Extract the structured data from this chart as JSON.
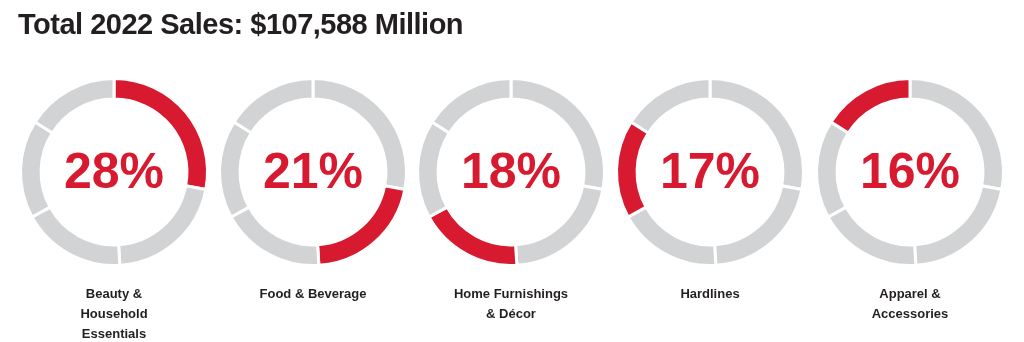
{
  "chart_data": [
    {
      "type": "other",
      "title": "Total 2022 Sales: $107,588 Million"
    },
    {
      "type": "donut",
      "title": "Beauty & Household Essentials",
      "categories": [
        null,
        null,
        null,
        null,
        null
      ],
      "values": [
        28,
        21,
        18,
        17,
        16
      ],
      "colors": [
        "#d71a30",
        "#d1d3d4",
        "#d1d3d4",
        "#d1d3d4",
        "#d1d3d4"
      ],
      "annotations": [
        "28%"
      ]
    },
    {
      "type": "donut",
      "title": "Food & Beverage",
      "categories": [
        null,
        null,
        null,
        null,
        null
      ],
      "values": [
        28,
        21,
        18,
        17,
        16
      ],
      "colors": [
        "#d1d3d4",
        "#d71a30",
        "#d1d3d4",
        "#d1d3d4",
        "#d1d3d4"
      ],
      "annotations": [
        "21%"
      ]
    },
    {
      "type": "donut",
      "title": "Home Furnishings & Décor",
      "categories": [
        null,
        null,
        null,
        null,
        null
      ],
      "values": [
        28,
        21,
        18,
        17,
        16
      ],
      "colors": [
        "#d1d3d4",
        "#d1d3d4",
        "#d71a30",
        "#d1d3d4",
        "#d1d3d4"
      ],
      "annotations": [
        "18%"
      ]
    },
    {
      "type": "donut",
      "title": "Hardlines",
      "categories": [
        null,
        null,
        null,
        null,
        null
      ],
      "values": [
        28,
        21,
        18,
        17,
        16
      ],
      "colors": [
        "#d1d3d4",
        "#d1d3d4",
        "#d1d3d4",
        "#d71a30",
        "#d1d3d4"
      ],
      "annotations": [
        "17%"
      ]
    },
    {
      "type": "donut",
      "title": "Apparel & Accessories",
      "categories": [
        null,
        null,
        null,
        null,
        null
      ],
      "values": [
        28,
        21,
        18,
        17,
        16
      ],
      "colors": [
        "#d1d3d4",
        "#d1d3d4",
        "#d1d3d4",
        "#d1d3d4",
        "#d71a30"
      ],
      "annotations": [
        "16%"
      ]
    }
  ]
}
